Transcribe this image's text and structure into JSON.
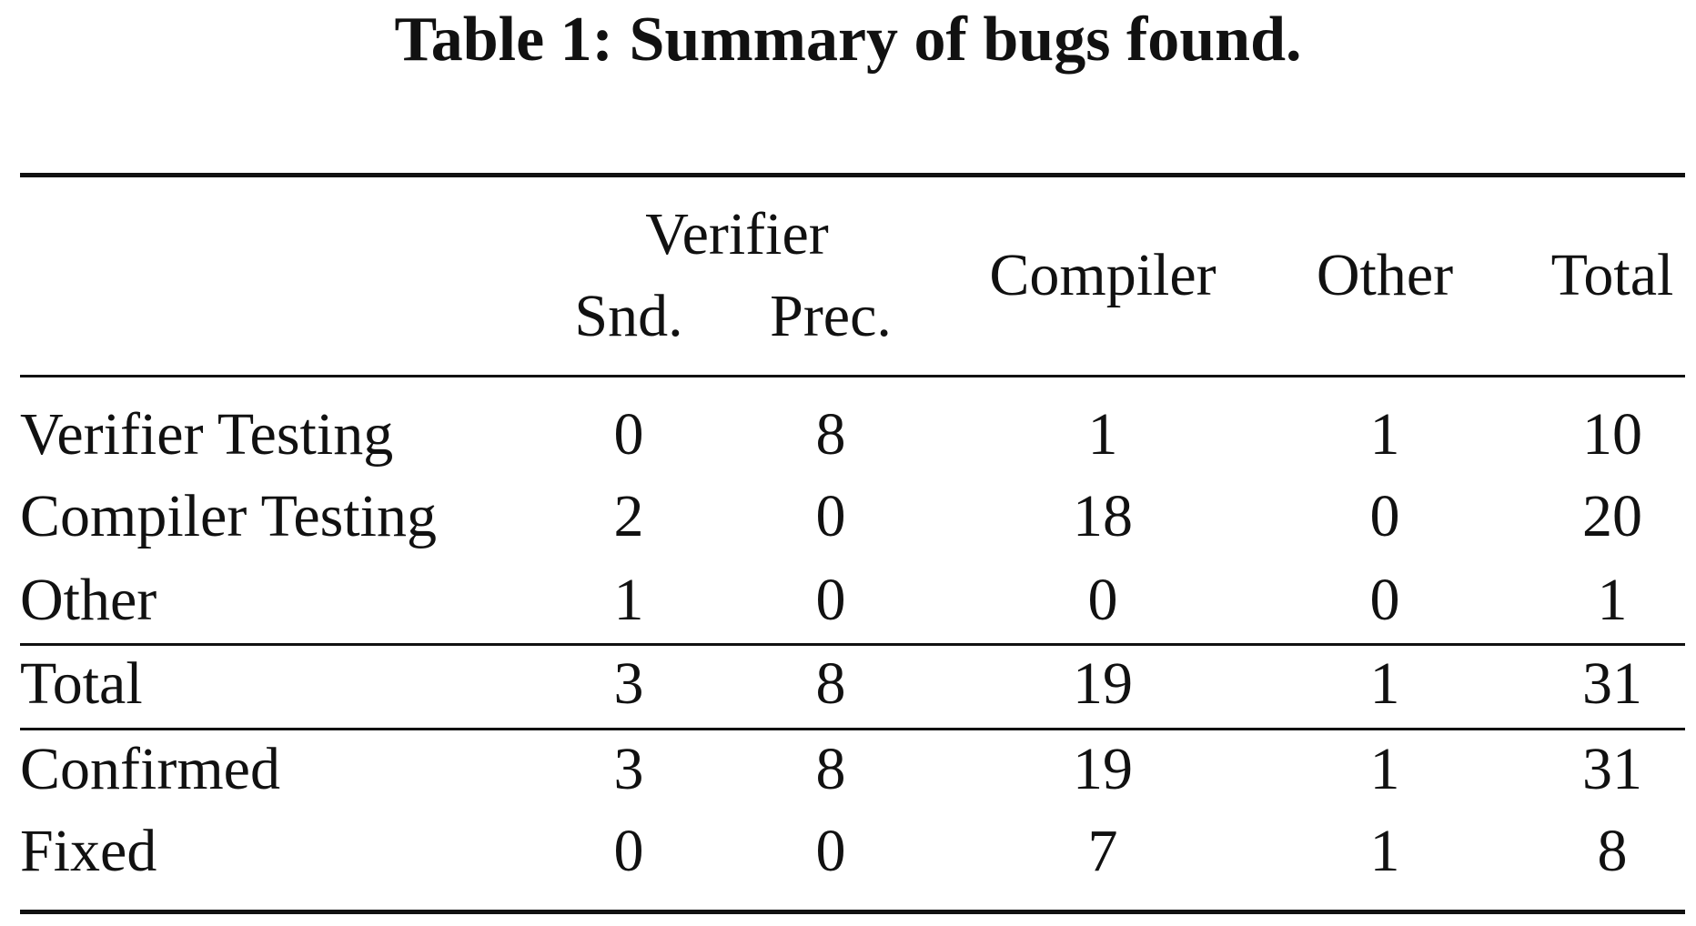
{
  "caption": "Table 1: Summary of bugs found.",
  "header": {
    "group": "Verifier",
    "columns": [
      "Snd.",
      "Prec.",
      "Compiler",
      "Other",
      "Total"
    ]
  },
  "rows": [
    {
      "label": "Verifier Testing",
      "values": [
        "0",
        "8",
        "1",
        "1",
        "10"
      ]
    },
    {
      "label": "Compiler Testing",
      "values": [
        "2",
        "0",
        "18",
        "0",
        "20"
      ]
    },
    {
      "label": "Other",
      "values": [
        "1",
        "0",
        "0",
        "0",
        "1"
      ]
    },
    {
      "label": "Total",
      "values": [
        "3",
        "8",
        "19",
        "1",
        "31"
      ]
    },
    {
      "label": "Confirmed",
      "values": [
        "3",
        "8",
        "19",
        "1",
        "31"
      ]
    },
    {
      "label": "Fixed",
      "values": [
        "0",
        "0",
        "7",
        "1",
        "8"
      ]
    }
  ]
}
